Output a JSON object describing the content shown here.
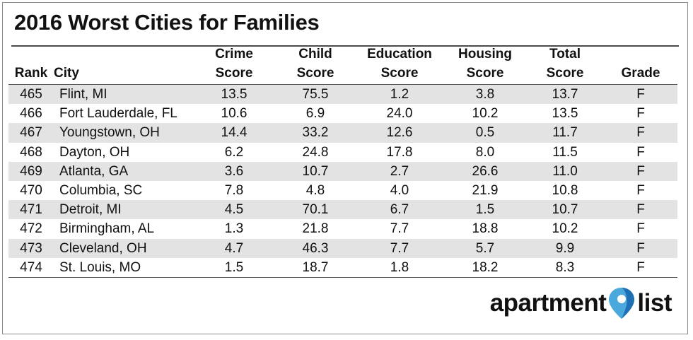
{
  "chart_data": {
    "type": "table",
    "title": "2016 Worst Cities for Families",
    "columns": [
      {
        "key": "rank",
        "lines": [
          "",
          "Rank"
        ],
        "align": "c"
      },
      {
        "key": "city",
        "lines": [
          "",
          "City"
        ],
        "align": "l"
      },
      {
        "key": "crime",
        "lines": [
          "Crime",
          "Score"
        ],
        "align": "c"
      },
      {
        "key": "child",
        "lines": [
          "Child",
          "Score"
        ],
        "align": "c"
      },
      {
        "key": "education",
        "lines": [
          "Education",
          "Score"
        ],
        "align": "c"
      },
      {
        "key": "housing",
        "lines": [
          "Housing",
          "Score"
        ],
        "align": "c"
      },
      {
        "key": "total",
        "lines": [
          "Total",
          "Score"
        ],
        "align": "c"
      },
      {
        "key": "grade",
        "lines": [
          "",
          "Grade"
        ],
        "align": "c"
      }
    ],
    "rows": [
      {
        "rank": "465",
        "city": "Flint, MI",
        "crime": "13.5",
        "child": "75.5",
        "education": "1.2",
        "housing": "3.8",
        "total": "13.7",
        "grade": "F"
      },
      {
        "rank": "466",
        "city": "Fort Lauderdale, FL",
        "crime": "10.6",
        "child": "6.9",
        "education": "24.0",
        "housing": "10.2",
        "total": "13.5",
        "grade": "F"
      },
      {
        "rank": "467",
        "city": "Youngstown, OH",
        "crime": "14.4",
        "child": "33.2",
        "education": "12.6",
        "housing": "0.5",
        "total": "11.7",
        "grade": "F"
      },
      {
        "rank": "468",
        "city": "Dayton, OH",
        "crime": "6.2",
        "child": "24.8",
        "education": "17.8",
        "housing": "8.0",
        "total": "11.5",
        "grade": "F"
      },
      {
        "rank": "469",
        "city": "Atlanta, GA",
        "crime": "3.6",
        "child": "10.7",
        "education": "2.7",
        "housing": "26.6",
        "total": "11.0",
        "grade": "F"
      },
      {
        "rank": "470",
        "city": "Columbia, SC",
        "crime": "7.8",
        "child": "4.8",
        "education": "4.0",
        "housing": "21.9",
        "total": "10.8",
        "grade": "F"
      },
      {
        "rank": "471",
        "city": "Detroit, MI",
        "crime": "4.5",
        "child": "70.1",
        "education": "6.7",
        "housing": "1.5",
        "total": "10.7",
        "grade": "F"
      },
      {
        "rank": "472",
        "city": "Birmingham, AL",
        "crime": "1.3",
        "child": "21.8",
        "education": "7.7",
        "housing": "18.8",
        "total": "10.2",
        "grade": "F"
      },
      {
        "rank": "473",
        "city": "Cleveland, OH",
        "crime": "4.7",
        "child": "46.3",
        "education": "7.7",
        "housing": "5.7",
        "total": "9.9",
        "grade": "F"
      },
      {
        "rank": "474",
        "city": "St. Louis, MO",
        "crime": "1.5",
        "child": "18.7",
        "education": "1.8",
        "housing": "18.2",
        "total": "8.3",
        "grade": "F"
      }
    ],
    "row_shading": "#e3e3e3"
  },
  "logo": {
    "word_left": "apartment",
    "word_right": "list",
    "icon": "map-pin-icon",
    "pin_colors": [
      "#4aa8dc",
      "#1f6fb5"
    ]
  }
}
